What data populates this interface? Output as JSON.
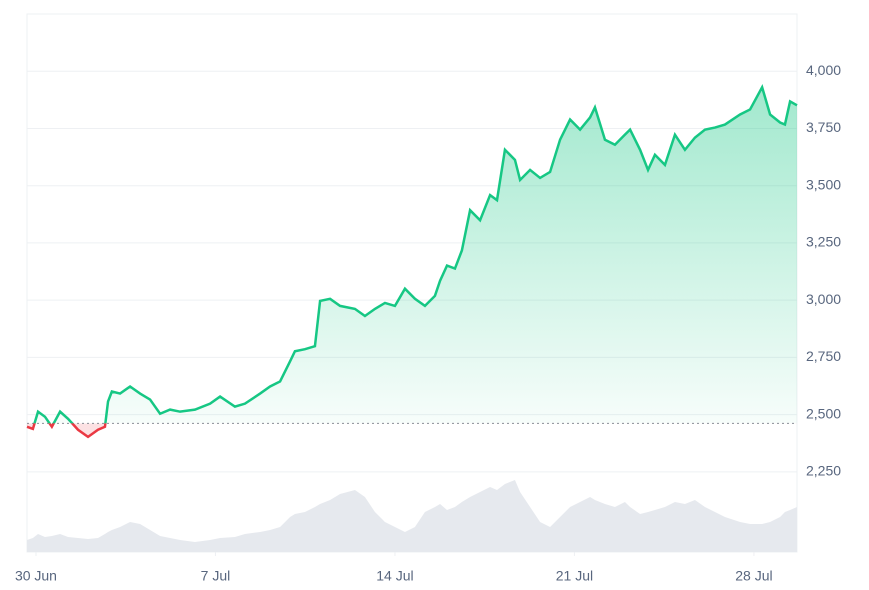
{
  "chart_data": {
    "type": "line",
    "x": [
      -0.35,
      -0.12,
      0.08,
      0.35,
      0.62,
      0.94,
      1.25,
      1.64,
      2.03,
      2.42,
      2.69,
      2.81,
      2.96,
      3.28,
      3.67,
      4.06,
      4.45,
      4.84,
      5.23,
      5.62,
      6.2,
      6.79,
      7.18,
      7.76,
      8.15,
      8.74,
      9.13,
      9.52,
      9.91,
      10.1,
      10.49,
      10.88,
      11.08,
      11.47,
      11.86,
      12.44,
      12.83,
      13.22,
      13.61,
      14.0,
      14.39,
      14.78,
      15.17,
      15.56,
      15.76,
      16.03,
      16.34,
      16.61,
      16.93,
      17.32,
      17.71,
      17.98,
      18.29,
      18.68,
      18.88,
      19.27,
      19.66,
      20.05,
      20.44,
      20.83,
      21.22,
      21.61,
      21.8,
      22.19,
      22.58,
      22.97,
      23.17,
      23.56,
      23.87,
      24.14,
      24.53,
      24.92,
      25.31,
      25.7,
      26.09,
      26.48,
      26.87,
      27.46,
      27.85,
      28.32,
      28.63,
      29.02,
      29.21,
      29.41,
      29.68
    ],
    "values": [
      2447,
      2438,
      2513,
      2491,
      2447,
      2513,
      2482,
      2434,
      2403,
      2434,
      2447,
      2557,
      2601,
      2592,
      2623,
      2592,
      2566,
      2504,
      2522,
      2513,
      2522,
      2548,
      2579,
      2535,
      2548,
      2592,
      2623,
      2645,
      2733,
      2777,
      2786,
      2799,
      2997,
      3006,
      2975,
      2962,
      2931,
      2962,
      2988,
      2975,
      3050,
      3006,
      2975,
      3019,
      3085,
      3151,
      3138,
      3217,
      3393,
      3349,
      3459,
      3437,
      3657,
      3613,
      3525,
      3569,
      3534,
      3560,
      3701,
      3789,
      3745,
      3798,
      3842,
      3701,
      3679,
      3723,
      3745,
      3657,
      3569,
      3635,
      3591,
      3723,
      3657,
      3710,
      3745,
      3754,
      3767,
      3811,
      3833,
      3930,
      3811,
      3776,
      3767,
      3868,
      3851
    ],
    "volume": [
      12,
      14,
      18,
      15,
      16,
      18,
      15,
      14,
      13,
      14,
      18,
      20,
      22,
      25,
      30,
      28,
      22,
      16,
      14,
      12,
      10,
      12,
      14,
      15,
      18,
      20,
      22,
      25,
      35,
      38,
      40,
      45,
      48,
      52,
      58,
      62,
      55,
      40,
      30,
      25,
      20,
      25,
      40,
      45,
      48,
      42,
      45,
      50,
      55,
      60,
      65,
      62,
      68,
      72,
      60,
      45,
      30,
      25,
      35,
      45,
      50,
      55,
      52,
      48,
      45,
      50,
      45,
      38,
      40,
      42,
      45,
      50,
      48,
      52,
      45,
      40,
      35,
      30,
      28,
      28,
      30,
      35,
      40,
      42,
      45
    ],
    "volume_ylim": [
      0,
      100
    ],
    "xlim": [
      -0.35,
      29.68
    ],
    "ylim": [
      1900,
      4250
    ],
    "baseline": 2462,
    "xticks": [
      {
        "value": 0,
        "label": "30 Jun"
      },
      {
        "value": 7,
        "label": "7 Jul"
      },
      {
        "value": 14,
        "label": "14 Jul"
      },
      {
        "value": 21,
        "label": "21 Jul"
      },
      {
        "value": 28,
        "label": "28 Jul"
      }
    ],
    "yticks": [
      {
        "value": 2250,
        "label": "2,250"
      },
      {
        "value": 2500,
        "label": "2,500"
      },
      {
        "value": 2750,
        "label": "2,750"
      },
      {
        "value": 3000,
        "label": "3,000"
      },
      {
        "value": 3250,
        "label": "3,250"
      },
      {
        "value": 3500,
        "label": "3,500"
      },
      {
        "value": 3750,
        "label": "3,750"
      },
      {
        "value": 4000,
        "label": "4,000"
      }
    ],
    "up_color": "#16c784",
    "down_color": "#ea3943",
    "volume_color": "#e6e9ee",
    "grid": true
  }
}
